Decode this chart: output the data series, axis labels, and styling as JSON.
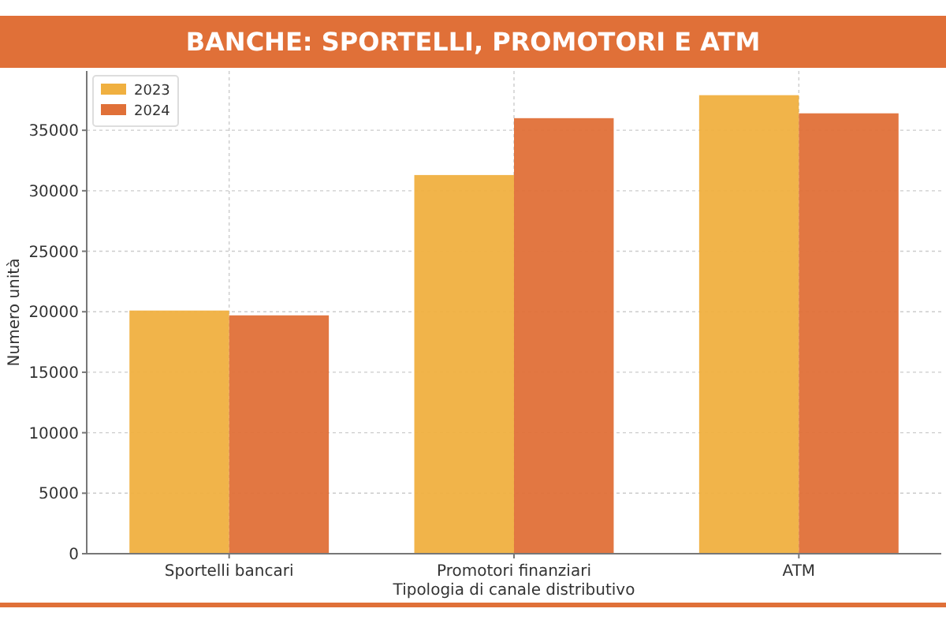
{
  "chart_data": {
    "type": "bar",
    "title": "BANCHE: SPORTELLI, PROMOTORI E ATM",
    "xlabel": "Tipologia di canale distributivo",
    "ylabel": "Numero unità",
    "categories": [
      "Sportelli bancari",
      "Promotori finanziari",
      "ATM"
    ],
    "series": [
      {
        "name": "2023",
        "color": "#f0b040",
        "values": [
          20100,
          31300,
          37900
        ]
      },
      {
        "name": "2024",
        "color": "#e07038",
        "values": [
          19700,
          36000,
          36400
        ]
      }
    ],
    "ylim": [
      0,
      39900
    ],
    "yticks": [
      0,
      5000,
      10000,
      15000,
      20000,
      25000,
      30000,
      35000
    ],
    "grid": true,
    "legend": "top left"
  }
}
